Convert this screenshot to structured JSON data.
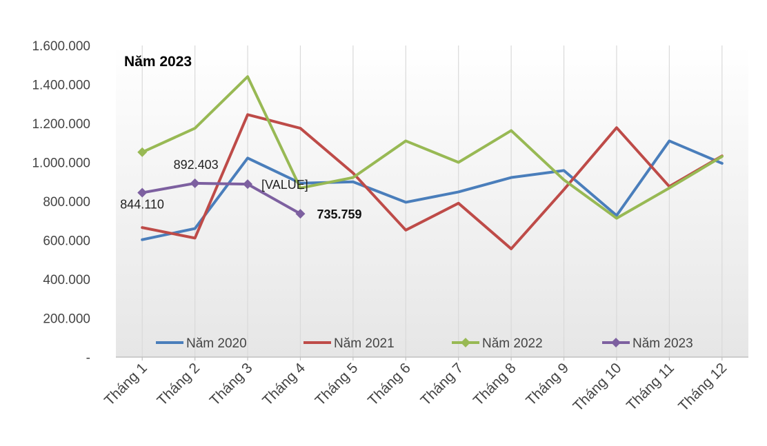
{
  "chart_data": {
    "type": "line",
    "title": "Năm 2023",
    "xlabel": "",
    "ylabel": "",
    "categories": [
      "Tháng 1",
      "Tháng 2",
      "Tháng 3",
      "Tháng 4",
      "Tháng 5",
      "Tháng 6",
      "Tháng 7",
      "Tháng 8",
      "Tháng 9",
      "Tháng 10",
      "Tháng 11",
      "Tháng 12"
    ],
    "ylim": [
      0,
      1600000
    ],
    "yticks": [
      {
        "value": 0,
        "label": "-"
      },
      {
        "value": 200000,
        "label": "200.000"
      },
      {
        "value": 400000,
        "label": "400.000"
      },
      {
        "value": 600000,
        "label": "600.000"
      },
      {
        "value": 800000,
        "label": "800.000"
      },
      {
        "value": 1000000,
        "label": "1.000.000"
      },
      {
        "value": 1200000,
        "label": "1.200.000"
      },
      {
        "value": 1400000,
        "label": "1.400.000"
      },
      {
        "value": 1600000,
        "label": "1.600.000"
      }
    ],
    "grid": "vertical",
    "legend_position": "bottom-inside",
    "series": [
      {
        "name": "Năm 2020",
        "color": "#4a7ebb",
        "marker": "none",
        "values": [
          603000,
          660000,
          1022000,
          893000,
          900000,
          795000,
          848000,
          922000,
          958000,
          727000,
          1110000,
          995000
        ]
      },
      {
        "name": "Năm 2021",
        "color": "#be4b48",
        "marker": "none",
        "values": [
          665000,
          611000,
          1245000,
          1175000,
          945000,
          652000,
          790000,
          556000,
          860000,
          1178000,
          876000,
          1033000
        ]
      },
      {
        "name": "Năm 2022",
        "color": "#98b954",
        "marker": "diamond",
        "values": [
          1052000,
          1175000,
          1440000,
          868000,
          922000,
          1110000,
          1000000,
          1163000,
          910000,
          713000,
          868000,
          1030000
        ]
      },
      {
        "name": "Năm 2023",
        "color": "#7d60a0",
        "marker": "diamond",
        "values": [
          844110,
          892403,
          888000,
          735759,
          null,
          null,
          null,
          null,
          null,
          null,
          null,
          null
        ]
      }
    ],
    "annotations": [
      {
        "series": 3,
        "index": 0,
        "text": "844.110",
        "bold": false
      },
      {
        "series": 3,
        "index": 1,
        "text": "892.403",
        "bold": false
      },
      {
        "series": 3,
        "index": 2,
        "text": "[VALUE]",
        "bold": false
      },
      {
        "series": 3,
        "index": 3,
        "text": "735.759",
        "bold": true
      }
    ]
  }
}
